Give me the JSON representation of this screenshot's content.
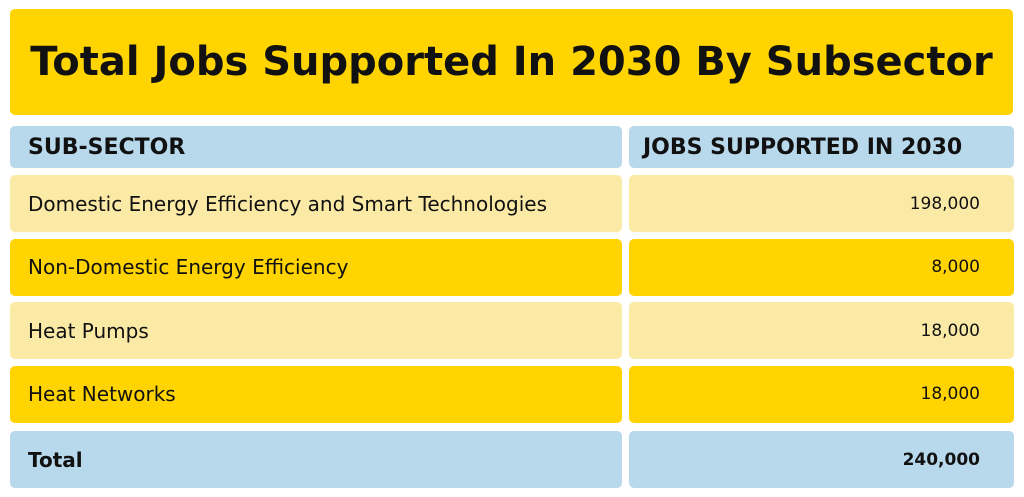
{
  "header": {
    "title": "Total Jobs Supported In 2030 By Subsector"
  },
  "table": {
    "columns": [
      "SUB-SECTOR",
      "JOBS SUPPORTED IN 2030"
    ],
    "rows": [
      [
        "Domestic Energy Efficiency and Smart Technologies",
        "198,000"
      ],
      [
        "Non-Domestic Energy Efficiency",
        "8,000"
      ],
      [
        "Heat Pumps",
        "18,000"
      ],
      [
        "Heat Networks",
        "18,000"
      ]
    ],
    "total": [
      "Total",
      "240,000"
    ]
  }
}
